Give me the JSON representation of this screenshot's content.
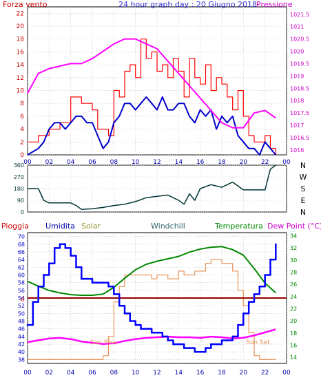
{
  "charts": {
    "wind_pressure": {
      "title": "24 hour graph day : 20 Giugno 2018",
      "left_label": "Forza vento",
      "right_label": "Pressione",
      "left_ticks": [
        "0",
        "2",
        "4",
        "6",
        "8",
        "10",
        "12",
        "14",
        "16",
        "18",
        "20",
        "22"
      ],
      "right_ticks": [
        "1016",
        "1016.5",
        "1017",
        "1017.5",
        "1018",
        "1018.5",
        "1019",
        "1019.5",
        "1020",
        "1020.5",
        "1021",
        "1021.5"
      ],
      "x_ticks": [
        "00",
        "02",
        "04",
        "06",
        "08",
        "10",
        "12",
        "14",
        "16",
        "18",
        "20",
        "22",
        "00"
      ]
    },
    "wind_dir": {
      "y_ticks": [
        "0",
        "90",
        "180",
        "270",
        "360"
      ],
      "compass": [
        "N",
        "W",
        "S",
        "E",
        "N"
      ]
    },
    "weather": {
      "labels": {
        "rain": "Pioggia",
        "humidity": "Umidita",
        "solar": "Solar",
        "windchill": "Windchill",
        "temperature": "Temperatura",
        "dewpoint": "Dew Point (°C)"
      },
      "left_ticks": [
        "38",
        "40",
        "42",
        "44",
        "46",
        "48",
        "50",
        "52",
        "54",
        "56",
        "58",
        "60",
        "62",
        "64",
        "66",
        "68",
        "70"
      ],
      "right_ticks": [
        "14",
        "16",
        "18",
        "20",
        "22",
        "24",
        "26",
        "28",
        "30",
        "32",
        "34"
      ],
      "rain_zero": "0",
      "sunrise": "Sun Rise",
      "sunset": "Sun Set",
      "x_ticks": [
        "00",
        "02",
        "04",
        "06",
        "08",
        "10",
        "12",
        "14",
        "16",
        "18",
        "20",
        "22",
        "00"
      ]
    }
  },
  "colors": {
    "wind_gust": "#ff0000",
    "wind_avg": "#0000cc",
    "pressure": "#ff00ff",
    "wind_dir": "#003333",
    "humidity": "#0000ff",
    "solar": "#e8945a",
    "temperature": "#008800",
    "dewpoint": "#ff00ff",
    "rain": "#990000"
  },
  "chart_data": [
    {
      "type": "line",
      "title": "24 hour graph day : 20 Giugno 2018",
      "xlabel": "",
      "ylabel": "Forza vento",
      "y2label": "Pressione",
      "xlim": [
        0,
        24
      ],
      "ylim": [
        0,
        23
      ],
      "y2lim": [
        1015.8,
        1021.8
      ],
      "series": [
        {
          "name": "",
          "axis": "left",
          "x": [
            0,
            1,
            2,
            3,
            4,
            5,
            6,
            6.5,
            7,
            7.5,
            8,
            8.5,
            9,
            9.5,
            10,
            10.5,
            11,
            11.5,
            12,
            12.5,
            13,
            13.5,
            14,
            14.5,
            15,
            15.5,
            16,
            16.5,
            17,
            17.5,
            18,
            18.5,
            19,
            19.5,
            20,
            20.5,
            21,
            21.5,
            22,
            22.5,
            23
          ],
          "y": [
            2,
            3,
            4,
            5,
            9,
            8,
            7,
            4,
            4,
            3,
            10,
            9,
            13,
            14,
            12,
            18,
            15,
            16,
            13,
            14,
            12,
            15,
            13,
            9,
            15,
            12,
            11,
            14,
            10,
            12,
            11,
            9,
            7,
            10,
            6,
            3,
            2,
            2,
            3,
            1,
            0
          ]
        },
        {
          "name": "",
          "axis": "left",
          "x": [
            0,
            1,
            1.5,
            2,
            2.5,
            3,
            3.5,
            4,
            4.5,
            5,
            5.5,
            6,
            6.5,
            7,
            7.5,
            8,
            8.5,
            9,
            9.5,
            10,
            10.5,
            11,
            11.5,
            12,
            12.5,
            13,
            13.5,
            14,
            14.5,
            15,
            15.5,
            16,
            16.5,
            17,
            17.5,
            18,
            18.5,
            19,
            19.5,
            20,
            20.5,
            21,
            21.5,
            22,
            22.5,
            23
          ],
          "y": [
            0,
            1,
            2,
            4,
            5,
            5,
            4,
            5,
            6,
            6,
            5,
            5,
            3,
            1,
            2,
            5,
            6,
            8,
            8,
            7,
            8,
            9,
            8,
            7,
            9,
            7,
            7,
            8,
            8,
            6,
            5,
            7,
            6,
            7,
            4,
            6,
            5,
            6,
            3,
            2,
            1,
            1,
            0,
            2,
            1,
            0
          ]
        },
        {
          "name": "Pressione",
          "axis": "right",
          "x": [
            0,
            1,
            2,
            3,
            4,
            5,
            6,
            7,
            8,
            9,
            10,
            11,
            12,
            13,
            14,
            15,
            16,
            17,
            18,
            19,
            20,
            21,
            22,
            23
          ],
          "y": [
            1018.3,
            1019.1,
            1019.3,
            1019.4,
            1019.5,
            1019.5,
            1019.7,
            1020.0,
            1020.3,
            1020.5,
            1020.5,
            1020.3,
            1020.1,
            1019.6,
            1019.1,
            1018.6,
            1018.1,
            1017.6,
            1017.1,
            1016.9,
            1016.9,
            1017.5,
            1017.6,
            1017.3
          ]
        }
      ]
    },
    {
      "type": "line",
      "title": "",
      "xlabel": "",
      "ylabel": "",
      "xlim": [
        0,
        24
      ],
      "ylim": [
        0,
        360
      ],
      "series": [
        {
          "name": "",
          "x": [
            0,
            1,
            1.5,
            2,
            3,
            4,
            4.5,
            5,
            6,
            7,
            8,
            9,
            10,
            11,
            12,
            13,
            14,
            14.5,
            15,
            15.5,
            16,
            17,
            18,
            19,
            20,
            21,
            22,
            22.5,
            23
          ],
          "y": [
            180,
            180,
            90,
            70,
            70,
            70,
            50,
            20,
            25,
            35,
            50,
            60,
            80,
            110,
            120,
            130,
            90,
            60,
            140,
            90,
            180,
            210,
            190,
            230,
            170,
            170,
            170,
            330,
            360
          ]
        }
      ]
    },
    {
      "type": "line",
      "title": "",
      "xlabel": "",
      "ylabel": "Umidita",
      "y2label": "Temperatura / Dew Point (°C)",
      "xlim": [
        0,
        24
      ],
      "ylim": [
        37,
        71
      ],
      "y2lim": [
        13,
        34.5
      ],
      "series": [
        {
          "name": "Umidita",
          "axis": "left",
          "x": [
            0,
            0.5,
            1,
            1.5,
            2,
            2.5,
            3,
            3.5,
            4,
            4.5,
            5,
            5.5,
            6,
            6.5,
            7,
            7.5,
            8,
            8.5,
            9,
            9.5,
            10,
            10.5,
            11,
            11.5,
            12,
            12.5,
            13,
            13.5,
            14,
            14.5,
            15,
            15.5,
            16,
            16.5,
            17,
            17.5,
            18,
            18.5,
            19,
            19.5,
            20,
            20.5,
            21,
            21.5,
            22,
            22.5,
            23
          ],
          "y": [
            47,
            53,
            57,
            60,
            63,
            67,
            68,
            67,
            65,
            62,
            59,
            59,
            58,
            58,
            58,
            57,
            55,
            52,
            50,
            48,
            47,
            46,
            46,
            45,
            45,
            44,
            43,
            42,
            42,
            41,
            41,
            40,
            40,
            41,
            42,
            42,
            43,
            43,
            44,
            47,
            50,
            53,
            55,
            57,
            60,
            64,
            68
          ]
        },
        {
          "name": "",
          "axis": "left",
          "x": [
            0,
            0.5,
            1,
            1.5,
            2,
            2.5,
            3,
            3.5,
            4,
            4.5,
            5,
            5.5,
            6,
            6.5,
            7,
            7.5,
            8,
            8.5,
            9,
            9.5,
            10,
            10.5,
            11,
            11.5,
            12,
            12.5,
            13,
            13.5,
            14,
            14.5,
            15,
            15.5,
            16,
            16.5,
            17,
            17.5,
            18,
            18.5,
            19,
            19.5,
            20,
            20.5,
            21,
            21.5,
            22,
            22.5,
            23
          ],
          "y": [
            38,
            38,
            38,
            38,
            38,
            38,
            38,
            38,
            38,
            38,
            38,
            38,
            38,
            38,
            39,
            44,
            53,
            57,
            60,
            60,
            60,
            60,
            60,
            59,
            60,
            60,
            59,
            59,
            61,
            60,
            60,
            61,
            61,
            63,
            64,
            64,
            63,
            63,
            61,
            56,
            52,
            45,
            39,
            38,
            38,
            38,
            38
          ]
        },
        {
          "name": "Temperatura",
          "axis": "right",
          "x": [
            0,
            1,
            2,
            3,
            4,
            5,
            6,
            7,
            8,
            9,
            10,
            11,
            12,
            13,
            14,
            15,
            16,
            17,
            18,
            19,
            20,
            21,
            22,
            23
          ],
          "y": [
            26.5,
            25.7,
            25.0,
            24.6,
            24.3,
            24.2,
            24.2,
            24.4,
            25.5,
            27.0,
            28.4,
            29.3,
            29.8,
            30.2,
            30.6,
            31.3,
            31.8,
            32.1,
            32.2,
            31.7,
            30.8,
            28.6,
            26.2,
            24.6
          ]
        },
        {
          "name": "Dew Point (°C)",
          "axis": "right",
          "x": [
            0,
            1,
            2,
            3,
            4,
            5,
            6,
            7,
            8,
            9,
            10,
            11,
            12,
            13,
            14,
            15,
            16,
            17,
            18,
            19,
            20,
            21,
            22,
            23
          ],
          "y": [
            16.5,
            16.8,
            17.1,
            17.2,
            17.0,
            16.6,
            16.4,
            16.2,
            16.3,
            16.7,
            17.0,
            17.2,
            17.3,
            17.4,
            17.3,
            17.3,
            17.2,
            17.4,
            17.3,
            17.1,
            17.2,
            17.6,
            18.1,
            18.6
          ]
        },
        {
          "name": "Pioggia",
          "axis": "left",
          "x": [
            0,
            24
          ],
          "y": [
            54,
            54
          ]
        }
      ]
    }
  ]
}
